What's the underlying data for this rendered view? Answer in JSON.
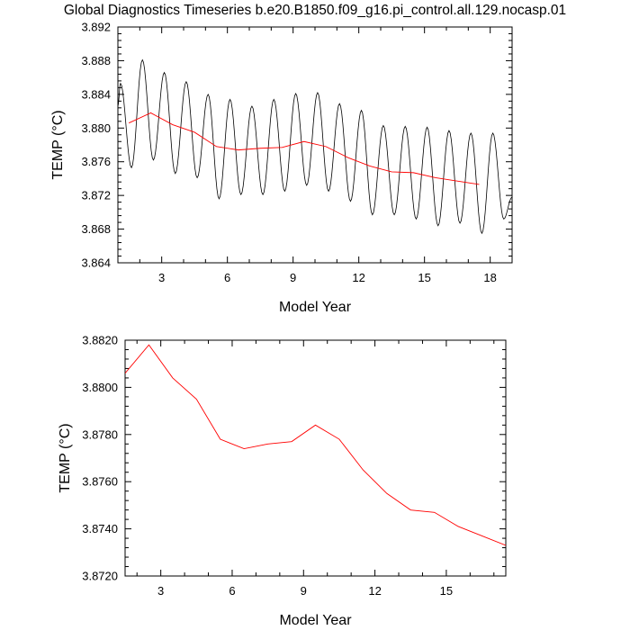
{
  "title": "Global Diagnostics Timeseries b.e20.B1850.f09_g16.pi_control.all.129.nocasp.01",
  "colors": {
    "monthly": "#000000",
    "annual": "#ff0000",
    "axes": "#000000"
  },
  "chart_data": [
    {
      "type": "line",
      "title": "Global Diagnostics Timeseries b.e20.B1850.f09_g16.pi_control.all.129.nocasp.01",
      "xlabel": "Model Year",
      "ylabel": "TEMP (°C)",
      "xlim": [
        1,
        19
      ],
      "ylim": [
        3.864,
        3.892
      ],
      "xticks": [
        3,
        6,
        9,
        12,
        15,
        18
      ],
      "xtick_labels": [
        "3",
        "6",
        "9",
        "12",
        "15",
        "18"
      ],
      "yticks": [
        3.864,
        3.868,
        3.872,
        3.876,
        3.88,
        3.884,
        3.888,
        3.892
      ],
      "ytick_labels": [
        "3.864",
        "3.868",
        "3.872",
        "3.876",
        "3.880",
        "3.884",
        "3.888",
        "3.892"
      ],
      "series": [
        {
          "name": "monthly",
          "color": "#000000",
          "peaks": [
            [
              1.12,
              3.8853
            ],
            [
              2.12,
              3.8881
            ],
            [
              3.12,
              3.8866
            ],
            [
              4.12,
              3.8855
            ],
            [
              5.12,
              3.884
            ],
            [
              6.12,
              3.8834
            ],
            [
              7.12,
              3.8826
            ],
            [
              8.12,
              3.8834
            ],
            [
              9.12,
              3.8841
            ],
            [
              10.12,
              3.8842
            ],
            [
              11.12,
              3.8829
            ],
            [
              12.12,
              3.8821
            ],
            [
              13.12,
              3.8803
            ],
            [
              14.12,
              3.8802
            ],
            [
              15.12,
              3.8801
            ],
            [
              16.12,
              3.8797
            ],
            [
              17.12,
              3.8794
            ],
            [
              18.12,
              3.8794
            ]
          ],
          "troughs": [
            [
              1.62,
              3.8753
            ],
            [
              2.62,
              3.8762
            ],
            [
              3.62,
              3.8746
            ],
            [
              4.62,
              3.8741
            ],
            [
              5.62,
              3.8716
            ],
            [
              6.62,
              3.8721
            ],
            [
              7.62,
              3.8721
            ],
            [
              8.62,
              3.8725
            ],
            [
              9.62,
              3.8732
            ],
            [
              10.62,
              3.8725
            ],
            [
              11.62,
              3.8713
            ],
            [
              12.62,
              3.8697
            ],
            [
              13.62,
              3.8697
            ],
            [
              14.62,
              3.8692
            ],
            [
              15.62,
              3.8684
            ],
            [
              16.62,
              3.8687
            ],
            [
              17.62,
              3.8675
            ],
            [
              18.62,
              3.8692
            ]
          ]
        },
        {
          "name": "annual",
          "color": "#ff0000",
          "x": [
            1.5,
            2.5,
            3.5,
            4.5,
            5.5,
            6.5,
            7.5,
            8.5,
            9.5,
            10.5,
            11.5,
            12.5,
            13.5,
            14.5,
            15.5,
            16.5,
            17.5
          ],
          "y": [
            3.8806,
            3.8818,
            3.8804,
            3.8795,
            3.8778,
            3.8774,
            3.8776,
            3.8777,
            3.8784,
            3.8778,
            3.8765,
            3.8755,
            3.8748,
            3.8747,
            3.8741,
            3.8737,
            3.8733
          ]
        }
      ]
    },
    {
      "type": "line",
      "title": "",
      "xlabel": "Model Year",
      "ylabel": "TEMP (°C)",
      "xlim": [
        1.5,
        17.5
      ],
      "ylim": [
        3.872,
        3.882
      ],
      "xticks": [
        3,
        6,
        9,
        12,
        15
      ],
      "xtick_labels": [
        "3",
        "6",
        "9",
        "12",
        "15"
      ],
      "yticks": [
        3.872,
        3.874,
        3.876,
        3.878,
        3.88,
        3.882
      ],
      "ytick_labels": [
        "3.8720",
        "3.8740",
        "3.8760",
        "3.8780",
        "3.8800",
        "3.8820"
      ],
      "series": [
        {
          "name": "annual",
          "color": "#ff0000",
          "x": [
            1.5,
            2.5,
            3.5,
            4.5,
            5.5,
            6.5,
            7.5,
            8.5,
            9.5,
            10.5,
            11.5,
            12.5,
            13.5,
            14.5,
            15.5,
            16.5,
            17.5
          ],
          "y": [
            3.8806,
            3.8818,
            3.8804,
            3.8795,
            3.8778,
            3.8774,
            3.8776,
            3.8777,
            3.8784,
            3.8778,
            3.8765,
            3.8755,
            3.8748,
            3.8747,
            3.8741,
            3.8737,
            3.8733
          ]
        }
      ]
    }
  ]
}
